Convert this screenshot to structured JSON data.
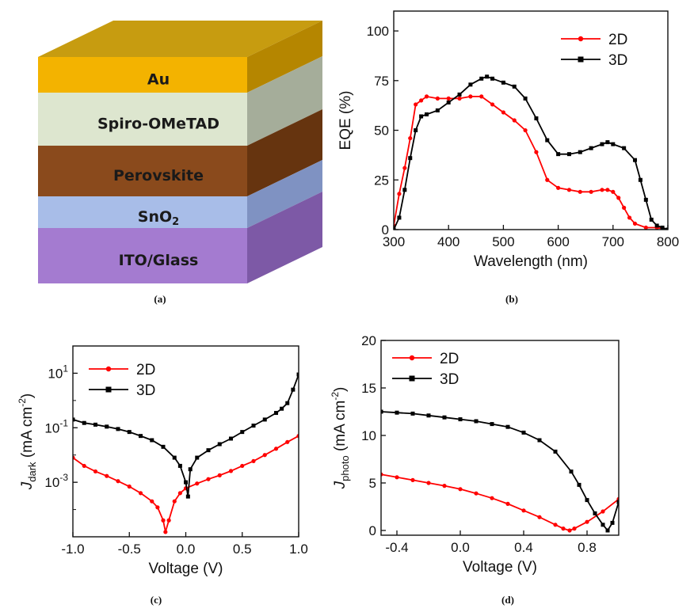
{
  "device": {
    "panel_label": "(a)",
    "layers": [
      {
        "name": "Au",
        "color": "#f3b300",
        "side": "#b58600",
        "top_color": "#c79c10"
      },
      {
        "name": "Spiro-OMeTAD",
        "color": "#dde6cf",
        "side": "#a5ad9a"
      },
      {
        "name": "Perovskite",
        "color": "#8a4a1c",
        "side": "#66340f"
      },
      {
        "name": "SnO",
        "sub": "2",
        "color": "#a8bde8",
        "side": "#7f92c2"
      },
      {
        "name": "ITO/Glass",
        "color": "#a47bd0",
        "side": "#7d59a6"
      }
    ]
  },
  "colors": {
    "2D": "#ff0000",
    "3D": "#000000"
  },
  "chart_data": [
    {
      "type": "line",
      "panel_label": "(b)",
      "xlabel": "Wavelength (nm)",
      "ylabel": "EQE  (%)",
      "xlim": [
        300,
        800
      ],
      "ylim": [
        0,
        110
      ],
      "xticks": [
        300,
        400,
        500,
        600,
        700,
        800
      ],
      "yticks": [
        0,
        25,
        50,
        75,
        100
      ],
      "legend_position": "top-right",
      "series": [
        {
          "name": "2D",
          "color": "#ff0000",
          "marker": "circle",
          "x": [
            300,
            310,
            320,
            330,
            340,
            350,
            360,
            380,
            400,
            420,
            440,
            460,
            480,
            500,
            520,
            540,
            560,
            580,
            600,
            620,
            640,
            660,
            680,
            690,
            700,
            710,
            720,
            730,
            740,
            760,
            780,
            800
          ],
          "y": [
            2,
            18,
            31,
            46,
            63,
            65,
            67,
            66,
            66,
            66,
            67,
            67,
            63,
            59,
            55,
            50,
            39,
            25,
            21,
            20,
            19,
            19,
            20,
            20,
            19,
            16,
            11,
            6,
            3,
            1,
            1,
            0
          ]
        },
        {
          "name": "3D",
          "color": "#000000",
          "marker": "square",
          "x": [
            300,
            310,
            320,
            330,
            340,
            350,
            360,
            380,
            400,
            420,
            440,
            460,
            470,
            480,
            500,
            520,
            540,
            560,
            580,
            600,
            620,
            640,
            660,
            680,
            690,
            700,
            720,
            740,
            750,
            760,
            770,
            780,
            790,
            800
          ],
          "y": [
            0,
            6,
            20,
            36,
            50,
            57,
            58,
            60,
            64,
            68,
            73,
            76,
            77,
            76,
            74,
            72,
            66,
            56,
            45,
            38,
            38,
            39,
            41,
            43,
            44,
            43,
            41,
            35,
            25,
            15,
            5,
            2,
            1,
            0
          ]
        }
      ]
    },
    {
      "type": "line",
      "panel_label": "(c)",
      "xlabel": "Voltage (V)",
      "ylabel_main": "J",
      "ylabel_sub": "dark",
      "ylabel_rest": " (mA cm",
      "ylabel_sup": "-2",
      "ylabel_end": ")",
      "yscale": "log",
      "xlim": [
        -1.0,
        1.0
      ],
      "ylim": [
        1e-05,
        100
      ],
      "xticks": [
        -1.0,
        -0.5,
        0.0,
        0.5,
        1.0
      ],
      "xtick_labels": [
        "-1.0",
        "-0.5",
        "0.0",
        "0.5",
        "1.0"
      ],
      "yticks": [
        0.001,
        0.1,
        10
      ],
      "ytick_base": [
        "10",
        "10",
        "10"
      ],
      "ytick_exp": [
        "-3",
        "-1",
        "1"
      ],
      "legend_position": "top-left",
      "series": [
        {
          "name": "2D",
          "color": "#ff0000",
          "marker": "circle",
          "x": [
            -1.0,
            -0.9,
            -0.8,
            -0.7,
            -0.6,
            -0.5,
            -0.4,
            -0.3,
            -0.25,
            -0.2,
            -0.18,
            -0.15,
            -0.1,
            -0.05,
            0.0,
            0.1,
            0.2,
            0.3,
            0.4,
            0.5,
            0.6,
            0.7,
            0.8,
            0.9,
            1.0
          ],
          "y": [
            0.008,
            0.004,
            0.0025,
            0.0017,
            0.0011,
            0.0007,
            0.0004,
            0.0002,
            0.00012,
            4e-05,
            1.5e-05,
            4e-05,
            0.0002,
            0.0004,
            0.0006,
            0.0009,
            0.0013,
            0.0018,
            0.0026,
            0.004,
            0.006,
            0.01,
            0.017,
            0.03,
            0.05
          ]
        },
        {
          "name": "3D",
          "color": "#000000",
          "marker": "square",
          "x": [
            -1.0,
            -0.9,
            -0.8,
            -0.7,
            -0.6,
            -0.5,
            -0.4,
            -0.3,
            -0.2,
            -0.1,
            -0.05,
            0.0,
            0.02,
            0.04,
            0.1,
            0.2,
            0.3,
            0.4,
            0.5,
            0.6,
            0.7,
            0.8,
            0.85,
            0.9,
            0.95,
            1.0
          ],
          "y": [
            0.2,
            0.15,
            0.13,
            0.11,
            0.09,
            0.07,
            0.05,
            0.035,
            0.02,
            0.008,
            0.004,
            0.001,
            0.0003,
            0.003,
            0.008,
            0.015,
            0.025,
            0.04,
            0.07,
            0.12,
            0.2,
            0.35,
            0.5,
            0.8,
            2.5,
            9
          ]
        }
      ]
    },
    {
      "type": "line",
      "panel_label": "(d)",
      "xlabel": "Voltage (V)",
      "ylabel_main": "J",
      "ylabel_sub": "photo",
      "ylabel_rest": " (mA cm",
      "ylabel_sup": "-2",
      "ylabel_end": ")",
      "xlim": [
        -0.5,
        1.0
      ],
      "ylim": [
        -0.5,
        20
      ],
      "xticks": [
        -0.4,
        0.0,
        0.4,
        0.8
      ],
      "xtick_labels": [
        "-0.4",
        "0.0",
        "0.4",
        "0.8"
      ],
      "yticks": [
        0,
        5,
        10,
        15,
        20
      ],
      "legend_position": "top-left",
      "series": [
        {
          "name": "2D",
          "color": "#ff0000",
          "marker": "circle",
          "x": [
            -0.5,
            -0.4,
            -0.3,
            -0.2,
            -0.1,
            0.0,
            0.1,
            0.2,
            0.3,
            0.4,
            0.5,
            0.6,
            0.65,
            0.69,
            0.72,
            0.8,
            0.9,
            1.0
          ],
          "y": [
            5.9,
            5.6,
            5.3,
            5.0,
            4.7,
            4.35,
            3.9,
            3.4,
            2.8,
            2.1,
            1.4,
            0.6,
            0.2,
            0.0,
            0.2,
            0.9,
            2.0,
            3.3
          ]
        },
        {
          "name": "3D",
          "color": "#000000",
          "marker": "square",
          "x": [
            -0.5,
            -0.4,
            -0.3,
            -0.2,
            -0.1,
            0.0,
            0.1,
            0.2,
            0.3,
            0.4,
            0.5,
            0.6,
            0.7,
            0.75,
            0.8,
            0.85,
            0.9,
            0.93,
            0.96,
            1.0
          ],
          "y": [
            12.5,
            12.4,
            12.3,
            12.1,
            11.9,
            11.7,
            11.5,
            11.2,
            10.9,
            10.3,
            9.5,
            8.3,
            6.2,
            4.8,
            3.2,
            1.8,
            0.6,
            0.0,
            0.8,
            3.0
          ]
        }
      ]
    }
  ]
}
